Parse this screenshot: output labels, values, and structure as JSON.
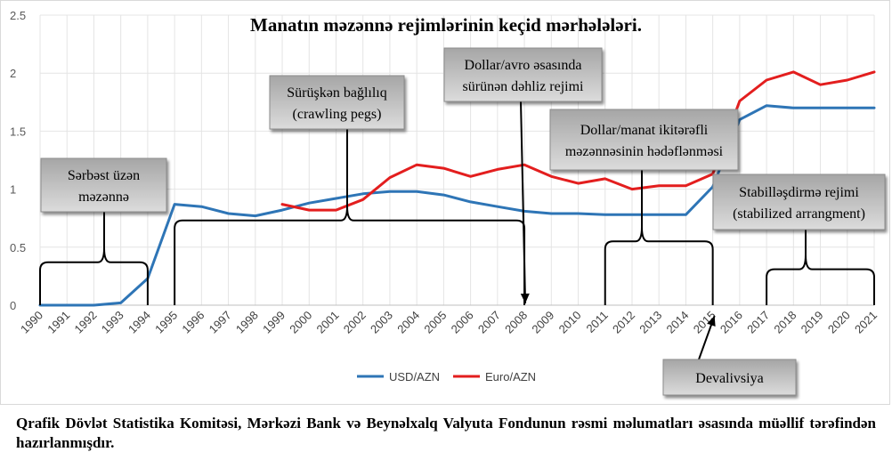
{
  "chart_data": {
    "type": "line",
    "title": "Manatın məzənnə rejimlərinin keçid mərhələləri.",
    "xlabel": "",
    "ylabel": "",
    "x": [
      1990,
      1991,
      1992,
      1993,
      1994,
      1995,
      1996,
      1997,
      1998,
      1999,
      2000,
      2001,
      2002,
      2003,
      2004,
      2005,
      2006,
      2007,
      2008,
      2009,
      2010,
      2011,
      2012,
      2013,
      2014,
      2015,
      2016,
      2017,
      2018,
      2019,
      2020,
      2021
    ],
    "ylim": [
      0,
      2.5
    ],
    "yticks": [
      "0",
      "0.5",
      "1",
      "1.5",
      "2",
      "2.5"
    ],
    "xticks": [
      "1990",
      "1991",
      "1992",
      "1993",
      "1994",
      "1995",
      "1996",
      "1997",
      "1998",
      "1999",
      "2000",
      "2001",
      "2002",
      "2003",
      "2004",
      "2005",
      "2006",
      "2007",
      "2008",
      "2009",
      "2010",
      "2011",
      "2012",
      "2013",
      "2014",
      "2015",
      "2016",
      "2017",
      "2018",
      "2019",
      "2020",
      "2021"
    ],
    "grid": true,
    "legend_position": "bottom",
    "series": [
      {
        "name": "USD/AZN",
        "color": "#2e75b6",
        "values": [
          0.0,
          0.0,
          0.0,
          0.02,
          0.23,
          0.87,
          0.85,
          0.79,
          0.77,
          0.82,
          0.88,
          0.92,
          0.96,
          0.98,
          0.98,
          0.95,
          0.89,
          0.85,
          0.81,
          0.79,
          0.79,
          0.78,
          0.78,
          0.78,
          0.78,
          1.02,
          1.6,
          1.72,
          1.7,
          1.7,
          1.7,
          1.7
        ]
      },
      {
        "name": "Euro/AZN",
        "color": "#e31e1e",
        "values": [
          null,
          null,
          null,
          null,
          null,
          null,
          null,
          null,
          null,
          0.87,
          0.82,
          0.82,
          0.91,
          1.1,
          1.21,
          1.18,
          1.11,
          1.17,
          1.21,
          1.11,
          1.05,
          1.09,
          1.0,
          1.03,
          1.03,
          1.13,
          1.76,
          1.94,
          2.01,
          1.9,
          1.94,
          2.01
        ]
      }
    ],
    "annotations": [
      {
        "id": "float",
        "lines": [
          "Sərbəst üzən",
          "məzənnə"
        ],
        "bracket": [
          1990,
          1994
        ],
        "level": 0.37
      },
      {
        "id": "crawling",
        "lines": [
          "Sürüşkən bağlılıq",
          "(crawling pegs)"
        ],
        "bracket": [
          1995,
          2008
        ],
        "level": 0.73
      },
      {
        "id": "corridor",
        "lines": [
          "Dollar/avro əsasında",
          "sürünən dəhliz rejimi"
        ],
        "arrow_to": 2008
      },
      {
        "id": "targeting",
        "lines": [
          "Dollar/manat ikitərəfli",
          "məzənnəsinin hədəflənməsi"
        ],
        "bracket": [
          2011,
          2015
        ],
        "level": 0.55
      },
      {
        "id": "stabilized",
        "lines": [
          "Stabilləşdirmə  rejimi",
          "(stabilized arrangment)"
        ],
        "bracket": [
          2017,
          2021
        ],
        "level": 0.31
      },
      {
        "id": "devaluation",
        "lines": [
          "Devalivsiya"
        ],
        "arrow_to": 2015
      }
    ]
  },
  "footnote": "Qrafik Dövlət Statistika Komitəsi, Mərkəzi Bank və Beynəlxalq Valyuta Fondunun rəsmi məlumatları əsasında müəllif tərəfindən hazırlanmışdır."
}
